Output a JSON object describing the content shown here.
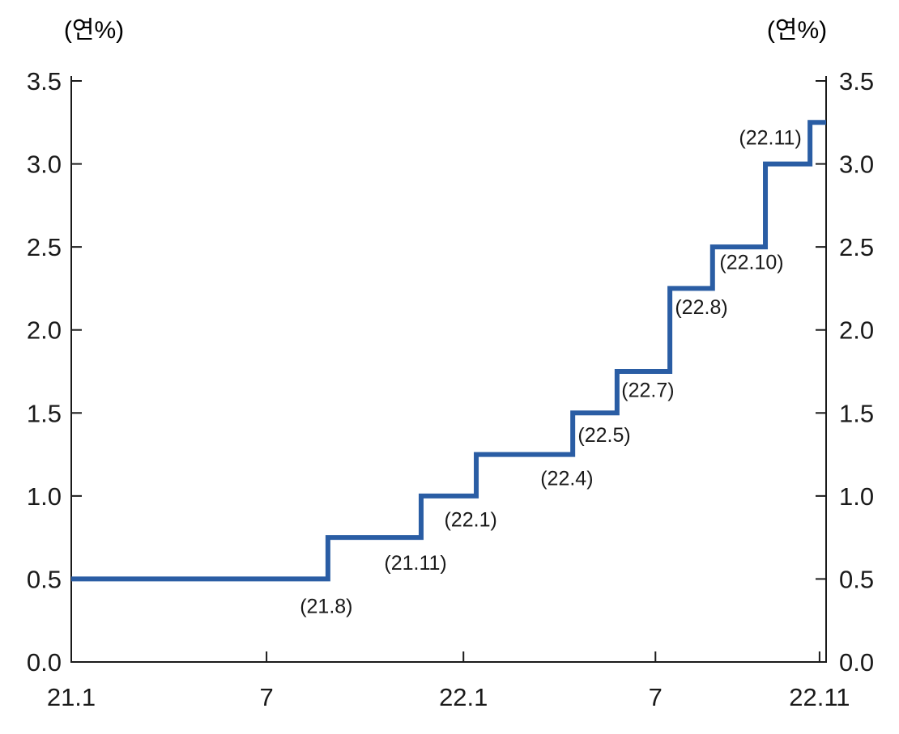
{
  "colors": {
    "line": "#2a5da4",
    "axis": "#1a1a1a",
    "text": "#1a1a1a",
    "background": "#ffffff"
  },
  "chart_data": {
    "type": "line",
    "subtype": "step",
    "title": "",
    "unit_left": "(연%)",
    "unit_right": "(연%)",
    "ylim": [
      0.0,
      3.5
    ],
    "y_tick_labels": [
      "0.0",
      "0.5",
      "1.0",
      "1.5",
      "2.0",
      "2.5",
      "3.0",
      "3.5"
    ],
    "x_range_labels": [
      "21.1",
      "22.11"
    ],
    "x_domain_months": [
      0,
      23
    ],
    "x_ticks": [
      {
        "m": 0,
        "label": "21.1"
      },
      {
        "m": 5.95,
        "label": "7"
      },
      {
        "m": 11.95,
        "label": "22.1"
      },
      {
        "m": 17.8,
        "label": "7"
      },
      {
        "m": 22.8,
        "label": "22.11"
      }
    ],
    "grid": false,
    "legend": "none",
    "start_rate": 0.5,
    "end_rate": 3.25,
    "line_end_m": 23,
    "steps": [
      {
        "m": 0.0,
        "rate": 0.5,
        "label": null
      },
      {
        "m": 7.82,
        "rate": 0.75,
        "label": "(21.8)",
        "label_m": 7.77,
        "label_rate": 0.34
      },
      {
        "m": 10.66,
        "rate": 1.0,
        "label": "(21.11)",
        "label_m": 10.49,
        "label_rate": 0.6
      },
      {
        "m": 12.34,
        "rate": 1.25,
        "label": "(22.1)",
        "label_m": 12.17,
        "label_rate": 0.86
      },
      {
        "m": 15.28,
        "rate": 1.5,
        "label": "(22.4)",
        "label_m": 15.1,
        "label_rate": 1.11
      },
      {
        "m": 16.63,
        "rate": 1.75,
        "label": "(22.5)",
        "label_m": 16.24,
        "label_rate": 1.37
      },
      {
        "m": 18.24,
        "rate": 2.25,
        "label": "(22.7)",
        "label_m": 17.57,
        "label_rate": 1.64
      },
      {
        "m": 19.54,
        "rate": 2.5,
        "label": "(22.8)",
        "label_m": 19.2,
        "label_rate": 2.14
      },
      {
        "m": 21.15,
        "rate": 3.0,
        "label": "(22.10)",
        "label_m": 20.73,
        "label_rate": 2.41
      },
      {
        "m": 22.51,
        "rate": 3.25,
        "label": "(22.11)",
        "label_m": 21.3,
        "label_rate": 3.16
      }
    ]
  }
}
